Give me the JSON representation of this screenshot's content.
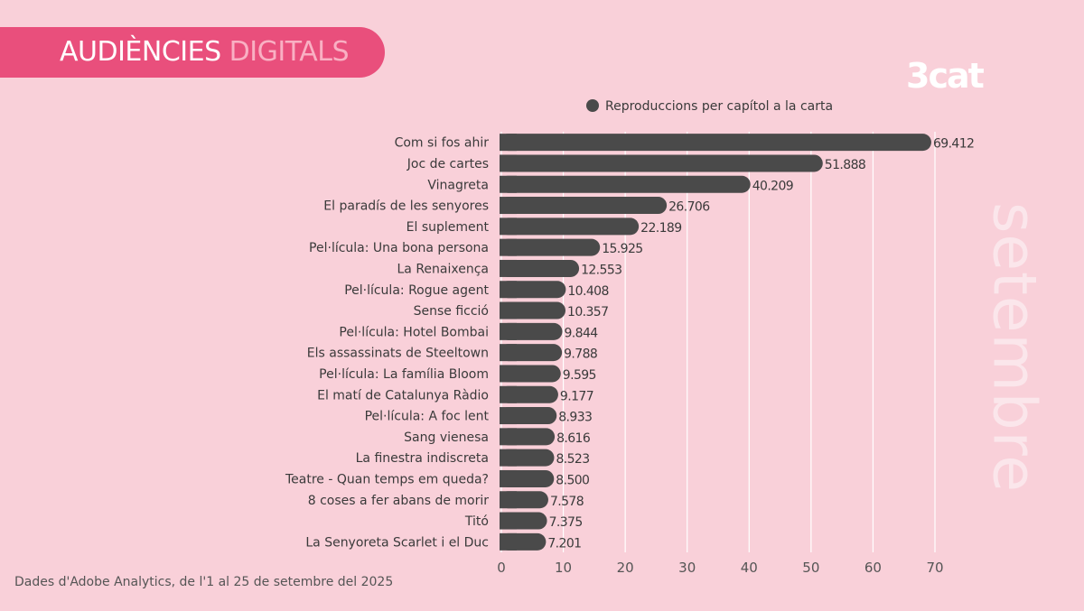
{
  "header": {
    "title_main": "AUDIÈNCIES",
    "title_accent": "DIGITALS",
    "logo": "3cat",
    "month": "setembre"
  },
  "colors": {
    "background": "#f9d0d9",
    "banner": "#e94f7c",
    "bar": "#4a4a4a"
  },
  "source": "Dades d'Adobe Analytics, de l'1 al 25 de setembre del 2025",
  "chart_data": {
    "type": "bar",
    "orientation": "horizontal",
    "legend": "top",
    "grid": true,
    "categories": [
      "Com si fos ahir",
      "Joc de cartes",
      "Vinagreta",
      "El paradís de les senyores",
      "El suplement",
      "Pel·lícula: Una bona persona",
      "La Renaixença",
      "Pel·lícula: Rogue agent",
      "Sense ficció",
      "Pel·lícula: Hotel Bombai",
      "Els assassinats de Steeltown",
      "Pel·lícula: La família Bloom",
      "El matí de Catalunya Ràdio",
      "Pel·lícula: A foc lent",
      "Sang vienesa",
      "La finestra indiscreta",
      "Teatre - Quan temps em queda?",
      "8 coses a fer abans de morir",
      "Titó",
      "La Senyoreta Scarlet i el Duc"
    ],
    "series": [
      {
        "name": "Reproduccions per capítol a la carta",
        "values": [
          69.412,
          51.888,
          40.209,
          26.706,
          22.189,
          15.925,
          12.553,
          10.408,
          10.357,
          9.844,
          9.788,
          9.595,
          9.177,
          8.933,
          8.616,
          8.523,
          8.5,
          7.578,
          7.375,
          7.201
        ],
        "labels": [
          "69.412",
          "51.888",
          "40.209",
          "26.706",
          "22.189",
          "15.925",
          "12.553",
          "10.408",
          "10.357",
          "9.844",
          "9.788",
          "9.595",
          "9.177",
          "8.933",
          "8.616",
          "8.523",
          "8.500",
          "7.578",
          "7.375",
          "7.201"
        ]
      }
    ],
    "xlim": [
      0,
      70
    ],
    "xticks": [
      0,
      10,
      20,
      30,
      40,
      50,
      60,
      70
    ]
  }
}
